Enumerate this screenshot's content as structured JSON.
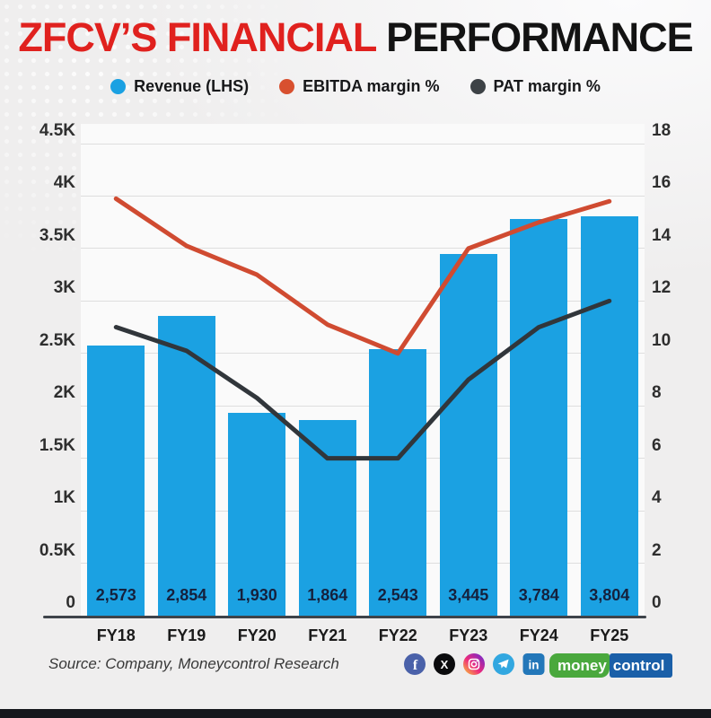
{
  "title": {
    "part1": "ZFCV’S FINANCIAL",
    "part2": " PERFORMANCE"
  },
  "legend": [
    {
      "label": "Revenue (LHS)",
      "color": "#1ba1e2"
    },
    {
      "label": "EBITDA margin %",
      "color": "#d8502f"
    },
    {
      "label": "PAT margin %",
      "color": "#3d4246"
    }
  ],
  "chart_data": {
    "type": "bar",
    "subtype": "combo-bar-line",
    "categories": [
      "FY18",
      "FY19",
      "FY20",
      "FY21",
      "FY22",
      "FY23",
      "FY24",
      "FY25"
    ],
    "series": [
      {
        "name": "Revenue (LHS)",
        "type": "bar",
        "axis": "left",
        "color": "#1ba1e2",
        "values": [
          2573,
          2854,
          1930,
          1864,
          2543,
          3445,
          3784,
          3804
        ],
        "value_labels": [
          "2,573",
          "2,854",
          "1,930",
          "1,864",
          "2,543",
          "3,445",
          "3,784",
          "3,804"
        ]
      },
      {
        "name": "EBITDA margin %",
        "type": "line",
        "axis": "right",
        "color": "#d04b31",
        "values": [
          15.9,
          14.1,
          13.0,
          11.1,
          10.0,
          14.0,
          15.0,
          15.8
        ]
      },
      {
        "name": "PAT margin %",
        "type": "line",
        "axis": "right",
        "color": "#31363b",
        "values": [
          11.0,
          10.1,
          8.3,
          6.0,
          6.0,
          9.0,
          11.0,
          12.0
        ]
      }
    ],
    "left_axis": {
      "ticks": [
        "4.5K",
        "4K",
        "3.5K",
        "3K",
        "2.5K",
        "2K",
        "1.5K",
        "1K",
        "0.5K",
        "0"
      ],
      "max": 4500,
      "min": 0
    },
    "right_axis": {
      "ticks": [
        "18",
        "16",
        "14",
        "12",
        "10",
        "8",
        "6",
        "4",
        "2",
        "0"
      ],
      "max": 18,
      "min": 0
    },
    "grid": true,
    "legend_position": "top"
  },
  "footer": {
    "source": "Source: Company, Moneycontrol Research",
    "social_glyphs": {
      "facebook": "f",
      "x": "X",
      "linkedin": "in"
    },
    "logo": {
      "part1": "money",
      "part2": "control"
    }
  }
}
